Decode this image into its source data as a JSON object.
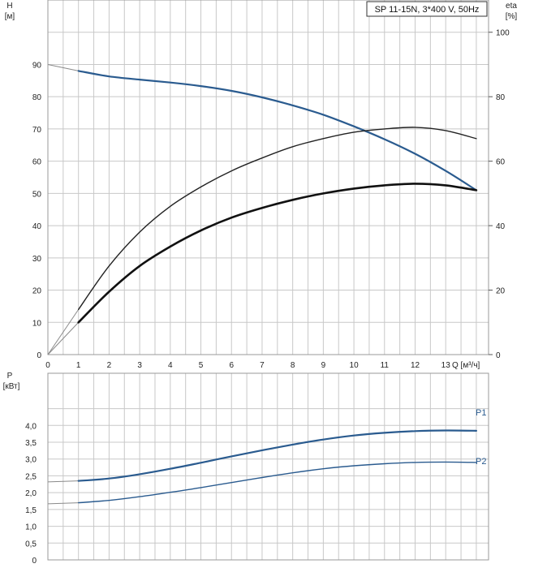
{
  "legend": "SP 11-15N, 3*400 V, 50Hz",
  "colors": {
    "head": "#2a5b8f",
    "eta": "#111111",
    "eta_thin": "#222222",
    "power": "#2a5b8f",
    "grid": "#c8c8c8",
    "frame": "#999999"
  },
  "chart_data": [
    {
      "type": "line",
      "panel": "top",
      "ylabel": "H",
      "yunit": "[м]",
      "y2label": "eta",
      "y2unit": "[%]",
      "xlabel": "Q [м³/ч]",
      "xlim": [
        0,
        14.4
      ],
      "ylim": [
        0,
        110
      ],
      "y2lim": [
        0,
        110
      ],
      "xticks": [
        "0",
        "1",
        "2",
        "3",
        "4",
        "5",
        "6",
        "7",
        "8",
        "9",
        "10",
        "11",
        "12",
        "13"
      ],
      "yticks": [
        "0",
        "10",
        "20",
        "30",
        "40",
        "50",
        "60",
        "70",
        "80",
        "90"
      ],
      "y2ticks": [
        "0",
        "20",
        "40",
        "60",
        "80",
        "100"
      ],
      "grid": true,
      "series": [
        {
          "id": "head",
          "axis": "left",
          "x": [
            1,
            2,
            3,
            4,
            5,
            6,
            7,
            8,
            9,
            10,
            11,
            12,
            13,
            14
          ],
          "y": [
            88,
            86.3,
            85.3,
            84.4,
            83.3,
            81.8,
            79.8,
            77.3,
            74.4,
            70.8,
            66.8,
            62.3,
            57,
            51
          ],
          "extension": {
            "x": [
              0,
              1
            ],
            "y": [
              90,
              88
            ]
          }
        },
        {
          "id": "eta-upper",
          "axis": "right",
          "x": [
            1,
            2,
            3,
            4,
            5,
            6,
            7,
            8,
            9,
            10,
            11,
            12,
            13,
            14
          ],
          "y": [
            14,
            27.5,
            38,
            46,
            52,
            57,
            61,
            64.5,
            67,
            69,
            70,
            70.5,
            69.5,
            67
          ],
          "extension": {
            "x": [
              0,
              1
            ],
            "y": [
              0,
              14
            ]
          }
        },
        {
          "id": "eta-lower",
          "axis": "right",
          "x": [
            1,
            2,
            3,
            4,
            5,
            6,
            7,
            8,
            9,
            10,
            11,
            12,
            13,
            14
          ],
          "y": [
            10,
            19.5,
            27.5,
            33.5,
            38.5,
            42.5,
            45.5,
            48,
            50,
            51.5,
            52.5,
            53,
            52.5,
            51
          ],
          "extension": {
            "x": [
              0,
              1
            ],
            "y": [
              0,
              10
            ]
          }
        }
      ]
    },
    {
      "type": "line",
      "panel": "bottom",
      "ylabel": "P",
      "yunit": "[кВт]",
      "xlim": [
        0,
        14.4
      ],
      "ylim": [
        0,
        4.9
      ],
      "yticks": [
        "0",
        "0,5",
        "1,0",
        "1,5",
        "2,0",
        "2,5",
        "3,0",
        "3,5",
        "4,0"
      ],
      "grid": true,
      "series": [
        {
          "name": "P1",
          "x": [
            1,
            2,
            3,
            4,
            5,
            6,
            7,
            8,
            9,
            10,
            11,
            12,
            13,
            14
          ],
          "y": [
            2.35,
            2.42,
            2.55,
            2.71,
            2.89,
            3.08,
            3.26,
            3.43,
            3.58,
            3.7,
            3.78,
            3.83,
            3.85,
            3.84
          ],
          "extension": {
            "x": [
              0,
              1
            ],
            "y": [
              2.32,
              2.35
            ]
          }
        },
        {
          "name": "P2",
          "x": [
            1,
            2,
            3,
            4,
            5,
            6,
            7,
            8,
            9,
            10,
            11,
            12,
            13,
            14
          ],
          "y": [
            1.7,
            1.77,
            1.88,
            2.01,
            2.15,
            2.3,
            2.45,
            2.59,
            2.71,
            2.8,
            2.86,
            2.9,
            2.91,
            2.9
          ],
          "extension": {
            "x": [
              0,
              1
            ],
            "y": [
              1.67,
              1.7
            ]
          }
        }
      ]
    }
  ]
}
